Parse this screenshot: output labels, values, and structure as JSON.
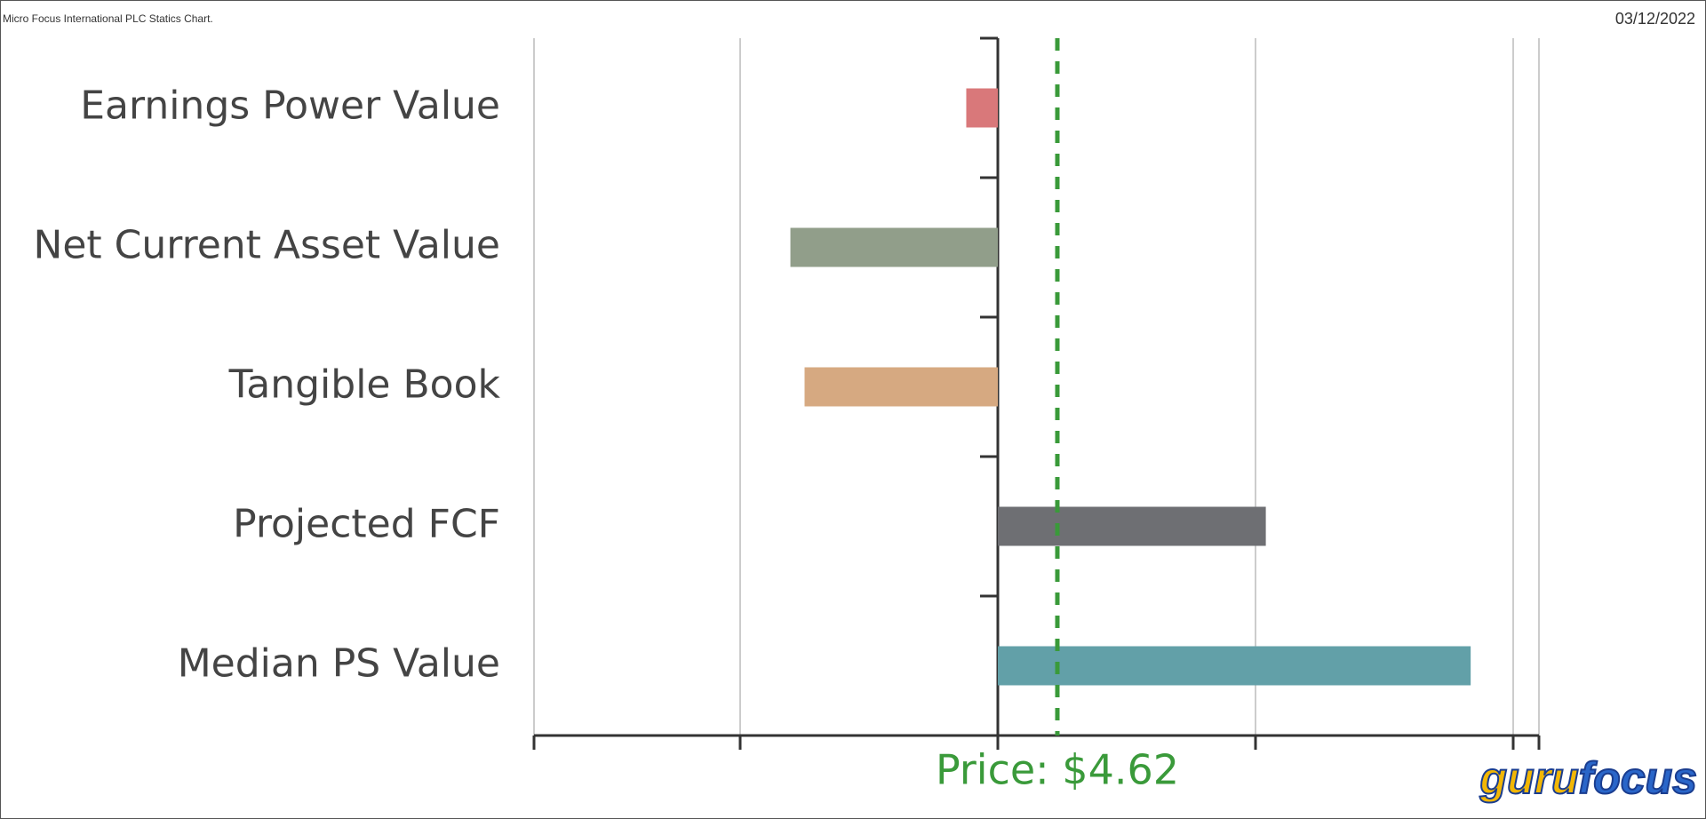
{
  "header": {
    "title": "Micro Focus International PLC Statics Chart.",
    "date": "03/12/2022"
  },
  "chart_data": {
    "type": "hbar",
    "categories": [
      "Earnings Power Value",
      "Net Current Asset Value",
      "Tangible Book",
      "Projected FCF",
      "Median PS Value"
    ],
    "values": [
      -2.45,
      -16.1,
      -15.0,
      20.8,
      36.7
    ],
    "colors": [
      "#d9787a",
      "#919e8a",
      "#d6a981",
      "#6e6f73",
      "#62a0a8"
    ],
    "xlim": [
      -36,
      42
    ],
    "xticks": [
      -20,
      0,
      20,
      40
    ],
    "grid": true,
    "price": {
      "value": 4.62,
      "label": "Price: $4.62",
      "color": "#3a9a3a"
    }
  },
  "logo": {
    "parts": [
      "guru",
      "focus"
    ]
  }
}
